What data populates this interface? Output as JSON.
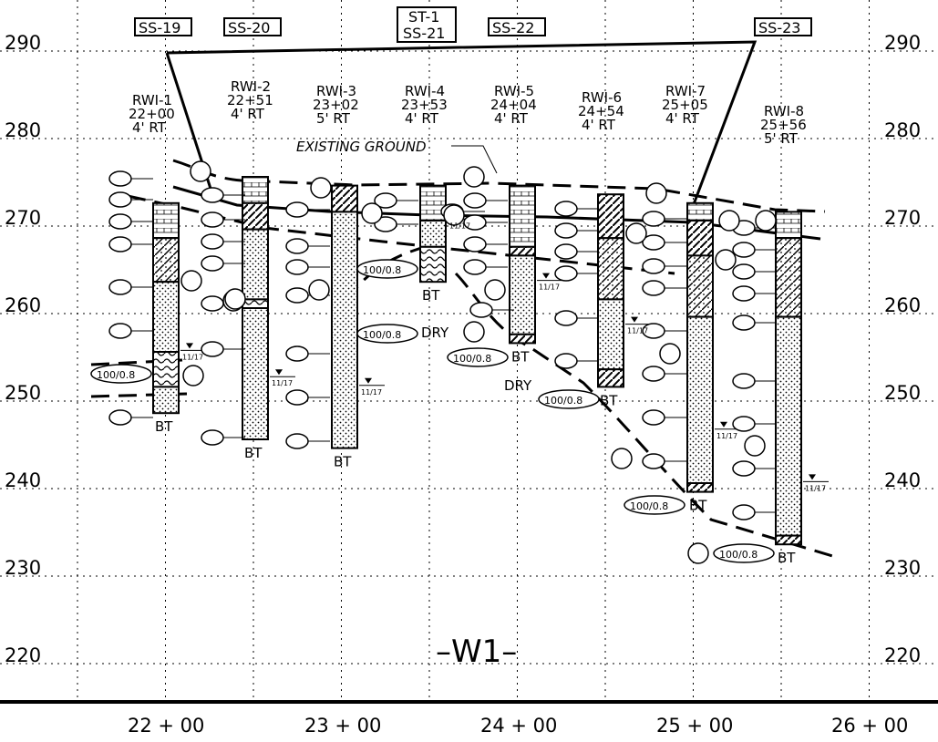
{
  "elevation_labels": [
    "290",
    "280",
    "270",
    "260",
    "250",
    "240",
    "230",
    "220"
  ],
  "station_labels": [
    "22+00",
    "23+00",
    "24+00",
    "25+00",
    "26+00"
  ],
  "section_label": "–W1–",
  "existing_ground_label": "EXISTING GROUND",
  "ss_boxes": [
    "SS-19",
    "SS-20",
    "SS-22",
    "SS-23"
  ],
  "st_box": [
    "ST-1",
    "SS-21"
  ],
  "borings": [
    {
      "name": "RWI-1",
      "station": "22+00",
      "offset": "4' RT"
    },
    {
      "name": "RWI-2",
      "station": "22+51",
      "offset": "4' RT"
    },
    {
      "name": "RWI-3",
      "station": "23+02",
      "offset": "5' RT"
    },
    {
      "name": "RWI-4",
      "station": "23+53",
      "offset": "4' RT"
    },
    {
      "name": "RWI-5",
      "station": "24+04",
      "offset": "4' RT"
    },
    {
      "name": "RWI-6",
      "station": "24+54",
      "offset": "4' RT"
    },
    {
      "name": "RWI-7",
      "station": "25+05",
      "offset": "4' RT"
    },
    {
      "name": "RWI-8",
      "station": "25+56",
      "offset": "5' RT"
    }
  ],
  "bt": "BT",
  "dry": "DRY",
  "date": "11/17",
  "refusal": "100/0.8"
}
